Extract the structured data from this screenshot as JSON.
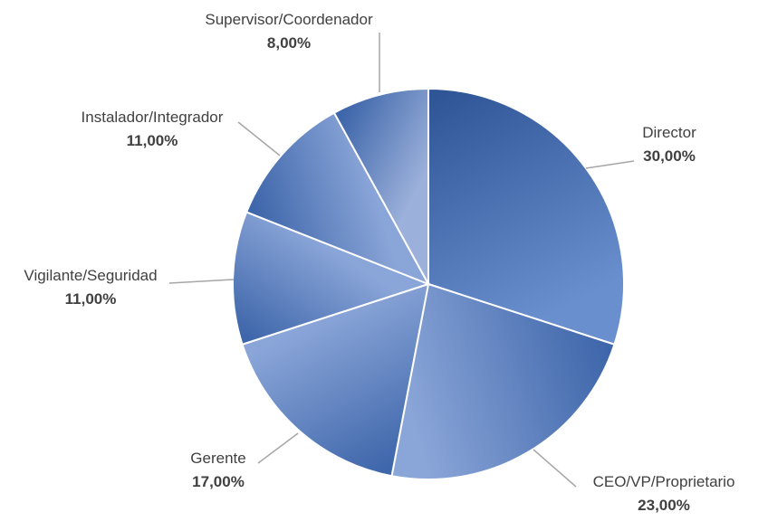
{
  "chart_data": {
    "type": "pie",
    "title": "",
    "start_angle_deg": 0,
    "direction": "clockwise",
    "legend": "none",
    "slices": [
      {
        "name": "Director",
        "value": 30.0,
        "label": "30,00%"
      },
      {
        "name": "CEO/VP/Proprietario",
        "value": 23.0,
        "label": "23,00%"
      },
      {
        "name": "Gerente",
        "value": 17.0,
        "label": "17,00%"
      },
      {
        "name": "Vigilante/Seguridad",
        "value": 11.0,
        "label": "11,00%"
      },
      {
        "name": "Instalador/Integrador",
        "value": 11.0,
        "label": "11,00%"
      },
      {
        "name": "Supervisor/Coordenador",
        "value": 8.0,
        "label": "8,00%"
      }
    ],
    "colors": {
      "light": "#9bb0da",
      "dark": "#2f5597",
      "mid": "#5f86c6"
    }
  }
}
